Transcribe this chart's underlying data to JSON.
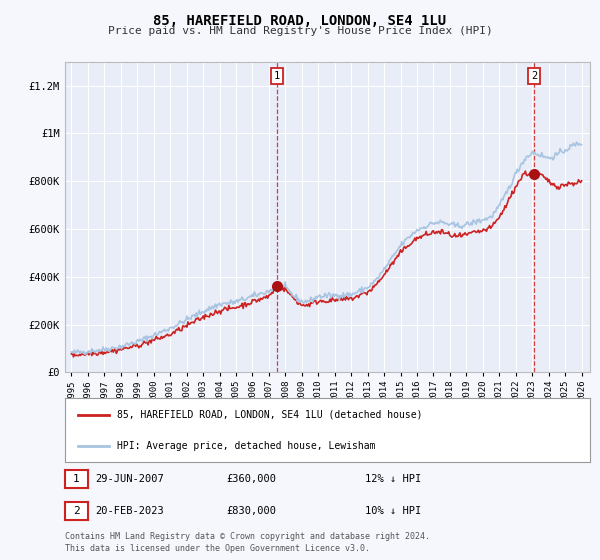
{
  "title": "85, HAREFIELD ROAD, LONDON, SE4 1LU",
  "subtitle": "Price paid vs. HM Land Registry's House Price Index (HPI)",
  "hpi_label": "HPI: Average price, detached house, Lewisham",
  "property_label": "85, HAREFIELD ROAD, LONDON, SE4 1LU (detached house)",
  "ylim": [
    0,
    1300000
  ],
  "yticks": [
    0,
    200000,
    400000,
    600000,
    800000,
    1000000,
    1200000
  ],
  "ytick_labels": [
    "£0",
    "£200K",
    "£400K",
    "£600K",
    "£800K",
    "£1M",
    "£1.2M"
  ],
  "sale1_date": "29-JUN-2007",
  "sale1_price": 360000,
  "sale1_label": "12% ↓ HPI",
  "sale2_date": "20-FEB-2023",
  "sale2_price": 830000,
  "sale2_label": "10% ↓ HPI",
  "hpi_color": "#a8c4e0",
  "property_color": "#cc2222",
  "sale_marker_color": "#aa1111",
  "vline_color": "#cc2222",
  "background_color": "#f5f7fc",
  "plot_bg_color": "#e8edf8",
  "grid_color": "#ffffff",
  "footer": "Contains HM Land Registry data © Crown copyright and database right 2024.\nThis data is licensed under the Open Government Licence v3.0.",
  "xstart_year": 1995,
  "xend_year": 2026,
  "sale1_x": 2007.5,
  "sale2_x": 2023.12
}
